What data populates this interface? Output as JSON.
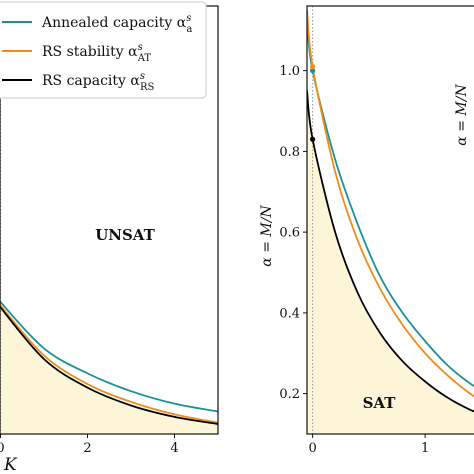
{
  "colors": {
    "annealed": "#1a9196",
    "rs_stability": "#f08c18",
    "rs_capacity": "#000000",
    "sat_fill": "#fdf5d8",
    "vline": "#999999"
  },
  "chart_data": [
    {
      "type": "line",
      "panel": "left",
      "xlabel": "K",
      "xticks": [
        "0",
        "2",
        "4"
      ],
      "xlim": [
        -0.15,
        5.0
      ],
      "ylim": [
        0.0,
        1.2
      ],
      "region_labels": [
        "UNSAT"
      ],
      "legend": {
        "placement": "top-right",
        "entries": [
          {
            "label": "Annealed capacity α",
            "sup": "s",
            "sub": "a",
            "color_key": "annealed"
          },
          {
            "label": "RS stability α",
            "sup": "s",
            "sub": "AT",
            "color_key": "rs_stability"
          },
          {
            "label": "RS capacity α",
            "sup": "s",
            "sub": "RS",
            "color_key": "rs_capacity"
          }
        ]
      },
      "series": [
        {
          "color_key": "annealed",
          "x": [
            -0.15,
            0.0,
            1.0,
            2.0,
            3.0,
            4.0,
            5.0
          ],
          "y": [
            0.4,
            0.37,
            0.24,
            0.17,
            0.12,
            0.085,
            0.063
          ]
        },
        {
          "color_key": "rs_stability",
          "x": [
            -0.15,
            0.0,
            1.0,
            2.0,
            3.0,
            4.0,
            5.0
          ],
          "y": [
            0.39,
            0.36,
            0.22,
            0.14,
            0.09,
            0.055,
            0.032
          ]
        },
        {
          "color_key": "rs_capacity",
          "x": [
            -0.15,
            0.0,
            1.0,
            2.0,
            3.0,
            4.0,
            5.0
          ],
          "y": [
            0.385,
            0.355,
            0.21,
            0.13,
            0.08,
            0.048,
            0.028
          ]
        }
      ],
      "fill_under_series": 2,
      "vline_x": 0.0
    },
    {
      "type": "line",
      "panel": "right",
      "ylabel": "α = M/N",
      "ylabel_right_partial": "α = M/N",
      "xticks": [
        "0",
        "1"
      ],
      "yticks": [
        "0.2",
        "0.4",
        "0.6",
        "0.8",
        "1.0"
      ],
      "xlim": [
        -0.05,
        1.55
      ],
      "ylim": [
        0.1,
        1.16
      ],
      "region_labels": [
        "SAT"
      ],
      "series": [
        {
          "color_key": "annealed",
          "x": [
            -0.05,
            0.0,
            0.2,
            0.4,
            0.6,
            0.8,
            1.0,
            1.2,
            1.4,
            1.55
          ],
          "y": [
            1.12,
            1.0,
            0.78,
            0.62,
            0.49,
            0.4,
            0.33,
            0.27,
            0.225,
            0.2
          ]
        },
        {
          "color_key": "rs_stability",
          "x": [
            -0.05,
            0.0,
            0.2,
            0.4,
            0.6,
            0.8,
            1.0,
            1.2,
            1.4,
            1.55
          ],
          "y": [
            1.15,
            1.01,
            0.75,
            0.58,
            0.46,
            0.37,
            0.3,
            0.245,
            0.2,
            0.175
          ]
        },
        {
          "color_key": "rs_capacity",
          "x": [
            -0.05,
            0.0,
            0.2,
            0.4,
            0.6,
            0.8,
            1.0,
            1.2,
            1.4,
            1.55
          ],
          "y": [
            0.95,
            0.83,
            0.6,
            0.45,
            0.35,
            0.28,
            0.23,
            0.19,
            0.16,
            0.145
          ]
        }
      ],
      "points": [
        {
          "color_key": "annealed",
          "x": 0.0,
          "y": 1.0
        },
        {
          "color_key": "rs_stability",
          "x": 0.0,
          "y": 1.01
        },
        {
          "color_key": "rs_capacity",
          "x": 0.0,
          "y": 0.83
        }
      ],
      "fill_under_series": 2,
      "vline_x": 0.0
    }
  ]
}
